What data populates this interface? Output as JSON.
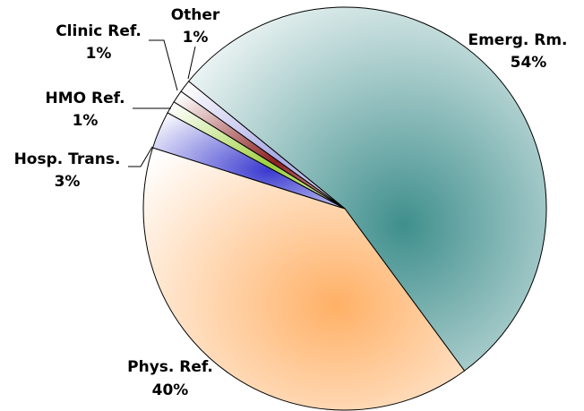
{
  "chart_data": {
    "type": "pie",
    "categories": [
      "Emerg. Rm.",
      "Phys. Ref.",
      "Hosp. Trans.",
      "HMO Ref.",
      "Clinic Ref.",
      "Other"
    ],
    "values": [
      54,
      40,
      3,
      1,
      1,
      1
    ],
    "value_labels": [
      "54%",
      "40%",
      "3%",
      "1%",
      "1%",
      "1%"
    ],
    "colors": [
      "#3f8f8d",
      "#ffb066",
      "#3a3ad0",
      "#9ccf3a",
      "#8c1e1e",
      "#a8a8e6"
    ]
  }
}
